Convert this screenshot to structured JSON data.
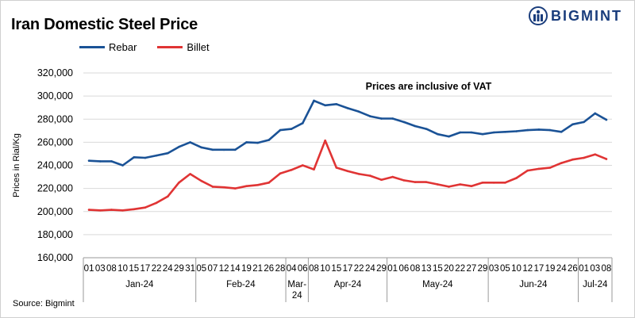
{
  "title": "Iran Domestic Steel Price",
  "brand": "BIGMINT",
  "source": "Source: Bigmint",
  "colors": {
    "rebar": "#1a5296",
    "billet": "#e03434",
    "brand": "#1a3d7c"
  },
  "chart_data": {
    "type": "line",
    "ylabel": "Prices in Rial/Kg",
    "annotation": "Prices are inclusive  of VAT",
    "ylim": [
      160000,
      320000
    ],
    "ytick_step": 20000,
    "yticks": [
      "160,000",
      "180,000",
      "200,000",
      "220,000",
      "240,000",
      "260,000",
      "280,000",
      "300,000",
      "320,000"
    ],
    "grid": "horizontal",
    "legend_position": "top-left",
    "x": [
      "01",
      "03",
      "08",
      "10",
      "15",
      "17",
      "22",
      "24",
      "29",
      "31",
      "05",
      "07",
      "12",
      "14",
      "19",
      "21",
      "26",
      "28",
      "04",
      "06",
      "08",
      "10",
      "15",
      "17",
      "22",
      "24",
      "29",
      "01",
      "06",
      "08",
      "13",
      "15",
      "20",
      "22",
      "27",
      "29",
      "03",
      "05",
      "10",
      "12",
      "17",
      "19",
      "24",
      "26",
      "01",
      "03",
      "08"
    ],
    "months": [
      {
        "label": "Jan-24",
        "count": 10
      },
      {
        "label": "Feb-24",
        "count": 8
      },
      {
        "label": "Mar-24",
        "label_lines": [
          "Mar-",
          "24"
        ],
        "count": 2
      },
      {
        "label": "Apr-24",
        "count": 7
      },
      {
        "label": "May-24",
        "count": 9
      },
      {
        "label": "Jun-24",
        "count": 8
      },
      {
        "label": "Jul-24",
        "count": 3
      }
    ],
    "series": [
      {
        "name": "Rebar",
        "color": "#1a5296",
        "values": [
          244000,
          243500,
          243500,
          240000,
          247000,
          246500,
          248500,
          250500,
          256000,
          260000,
          255500,
          253500,
          253500,
          253500,
          260000,
          259500,
          262000,
          270500,
          271500,
          276500,
          296000,
          292000,
          293000,
          289500,
          286500,
          282500,
          280500,
          280500,
          277500,
          274000,
          271500,
          267000,
          265000,
          268500,
          268500,
          267000,
          268500,
          269000,
          269500,
          270500,
          271000,
          270500,
          269000,
          275500,
          277500,
          285000,
          279500
        ]
      },
      {
        "name": "Billet",
        "color": "#e03434",
        "values": [
          201500,
          201000,
          201500,
          201000,
          202000,
          203500,
          207500,
          213000,
          225000,
          232500,
          226500,
          221500,
          221000,
          220000,
          222000,
          223000,
          225000,
          233000,
          236000,
          240000,
          236500,
          261500,
          238000,
          235000,
          232500,
          231000,
          227500,
          230000,
          227000,
          225500,
          225500,
          223500,
          221500,
          223500,
          222000,
          225000,
          225000,
          225000,
          229000,
          235500,
          237000,
          238000,
          242000,
          245000,
          246500,
          249500,
          245500
        ]
      }
    ]
  }
}
